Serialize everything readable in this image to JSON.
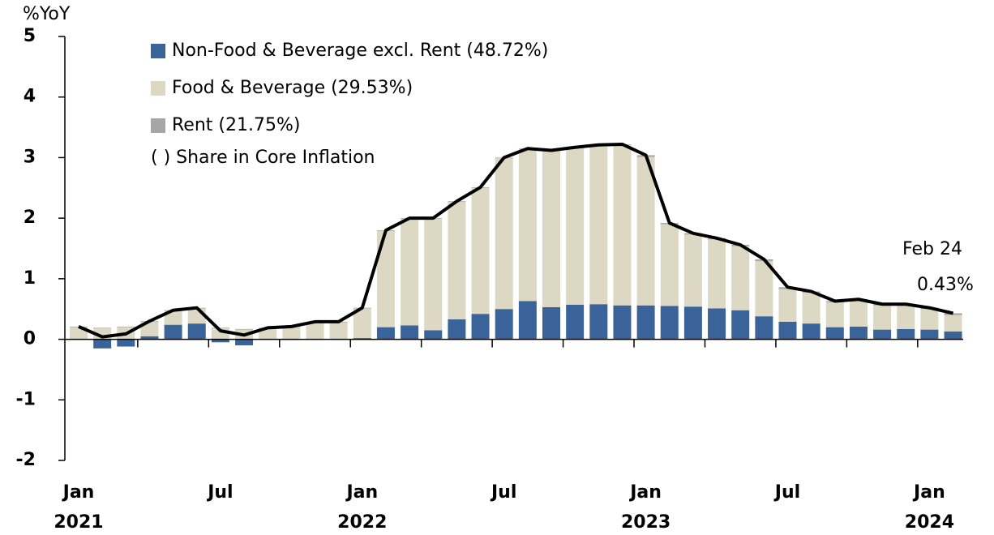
{
  "chart_data": {
    "type": "stacked-bar-line",
    "y_axis_label": "%YoY",
    "categories": [
      "Jan",
      null,
      null,
      null,
      null,
      null,
      "Jul",
      null,
      null,
      null,
      null,
      null,
      "Jan",
      null,
      null,
      null,
      null,
      null,
      "Jul",
      null,
      null,
      null,
      null,
      null,
      "Jan",
      null,
      null,
      null,
      null,
      null,
      "Jul",
      null,
      null,
      null,
      null,
      null,
      "Jan",
      null
    ],
    "years": [
      "2021",
      null,
      null,
      null,
      null,
      null,
      null,
      null,
      null,
      null,
      null,
      null,
      "2022",
      null,
      null,
      null,
      null,
      null,
      null,
      null,
      null,
      null,
      null,
      null,
      "2023",
      null,
      null,
      null,
      null,
      null,
      null,
      null,
      null,
      null,
      null,
      null,
      "2024",
      null
    ],
    "series": [
      {
        "name": "Non-Food & Beverage excl. Rent (48.72%)",
        "color": "#3a6399",
        "values": [
          0,
          -0.15,
          -0.12,
          0.05,
          0.24,
          0.26,
          -0.05,
          -0.1,
          0,
          -0.01,
          0,
          0,
          0.02,
          0.2,
          0.23,
          0.15,
          0.33,
          0.42,
          0.5,
          0.63,
          0.53,
          0.57,
          0.58,
          0.56,
          0.56,
          0.55,
          0.54,
          0.51,
          0.48,
          0.38,
          0.29,
          0.26,
          0.2,
          0.21,
          0.16,
          0.17,
          0.16,
          0.13
        ]
      },
      {
        "name": "Food & Beverage (29.53%)",
        "color": "#ddd8c4",
        "values": [
          0.2,
          0.18,
          0.2,
          0.24,
          0.23,
          0.25,
          0.18,
          0.16,
          0.18,
          0.21,
          0.28,
          0.28,
          0.49,
          1.59,
          1.76,
          1.84,
          1.94,
          2.08,
          2.49,
          2.51,
          2.58,
          2.59,
          2.62,
          2.65,
          2.45,
          1.35,
          1.19,
          1.14,
          1.06,
          0.91,
          0.54,
          0.51,
          0.41,
          0.43,
          0.4,
          0.39,
          0.34,
          0.27
        ]
      },
      {
        "name": "Rent (21.75%)",
        "color": "#a6a6a6",
        "values": [
          0.01,
          0.01,
          0.01,
          0.01,
          0.01,
          0.01,
          0.01,
          0.01,
          0.01,
          0.01,
          0.01,
          0.01,
          0.01,
          0.01,
          0.01,
          0.01,
          0.01,
          0.01,
          0.01,
          0.01,
          0.01,
          0.01,
          0.01,
          0.01,
          0.03,
          0.02,
          0.02,
          0.02,
          0.02,
          0.03,
          0.03,
          0.02,
          0.02,
          0.02,
          0.02,
          0.02,
          0.02,
          0.03
        ]
      }
    ],
    "line": {
      "color": "#000000",
      "values": [
        0.21,
        0.04,
        0.09,
        0.3,
        0.48,
        0.52,
        0.14,
        0.07,
        0.19,
        0.21,
        0.29,
        0.29,
        0.52,
        1.8,
        2.0,
        2.0,
        2.28,
        2.51,
        3.0,
        3.15,
        3.12,
        3.17,
        3.21,
        3.22,
        3.04,
        1.92,
        1.75,
        1.67,
        1.56,
        1.32,
        0.86,
        0.79,
        0.63,
        0.66,
        0.58,
        0.58,
        0.52,
        0.43
      ]
    },
    "legend_note": "( ) Share in Core Inflation",
    "annotations": [
      "Feb 24",
      "0.43%"
    ],
    "ylim": [
      -2,
      5
    ],
    "yticks": [
      -2,
      -1,
      0,
      1,
      2,
      3,
      4,
      5
    ]
  }
}
